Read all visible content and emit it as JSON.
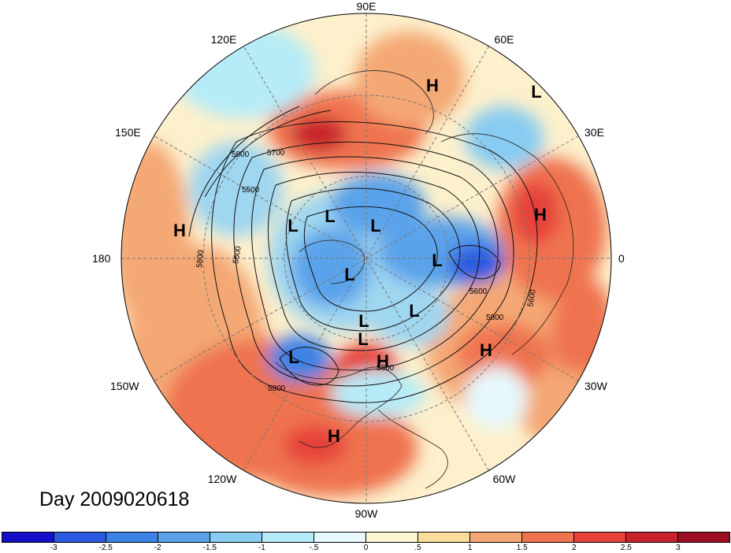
{
  "map": {
    "longitude_labels": [
      "90E",
      "60E",
      "30E",
      "0",
      "30W",
      "60W",
      "90W",
      "120W",
      "150W",
      "180",
      "150E",
      "120E"
    ],
    "high_labels": [
      "H",
      "H",
      "H",
      "H",
      "H",
      "H"
    ],
    "low_labels": [
      "L",
      "L",
      "L",
      "L",
      "L",
      "L",
      "L",
      "L",
      "L",
      "L"
    ],
    "contour_labels": [
      "5800",
      "5700",
      "5500",
      "5600",
      "5800",
      "5600",
      "5800",
      "5600",
      "5800",
      "5800"
    ]
  },
  "caption": "Day 2009020618",
  "colorbar": {
    "ticks": [
      "-3",
      "-2.5",
      "-2",
      "-1.5",
      "-1",
      "-.5",
      "0",
      ".5",
      "1",
      "1.5",
      "2",
      "2.5",
      "3"
    ],
    "colors": [
      "#1410c8",
      "#2c5ae0",
      "#3d82e6",
      "#5aa2ea",
      "#88ccf2",
      "#b6ecf8",
      "#e6f8fc",
      "#fdf5cf",
      "#fadc9c",
      "#f4a874",
      "#ef7350",
      "#e6423a",
      "#c8222c",
      "#9c0e22"
    ]
  },
  "colors": {
    "ocean_base": "#fdf0cc",
    "warm": "#f08a5c",
    "hot": "#d6302e",
    "cool": "#9fd6f0",
    "cold": "#3e88da"
  }
}
